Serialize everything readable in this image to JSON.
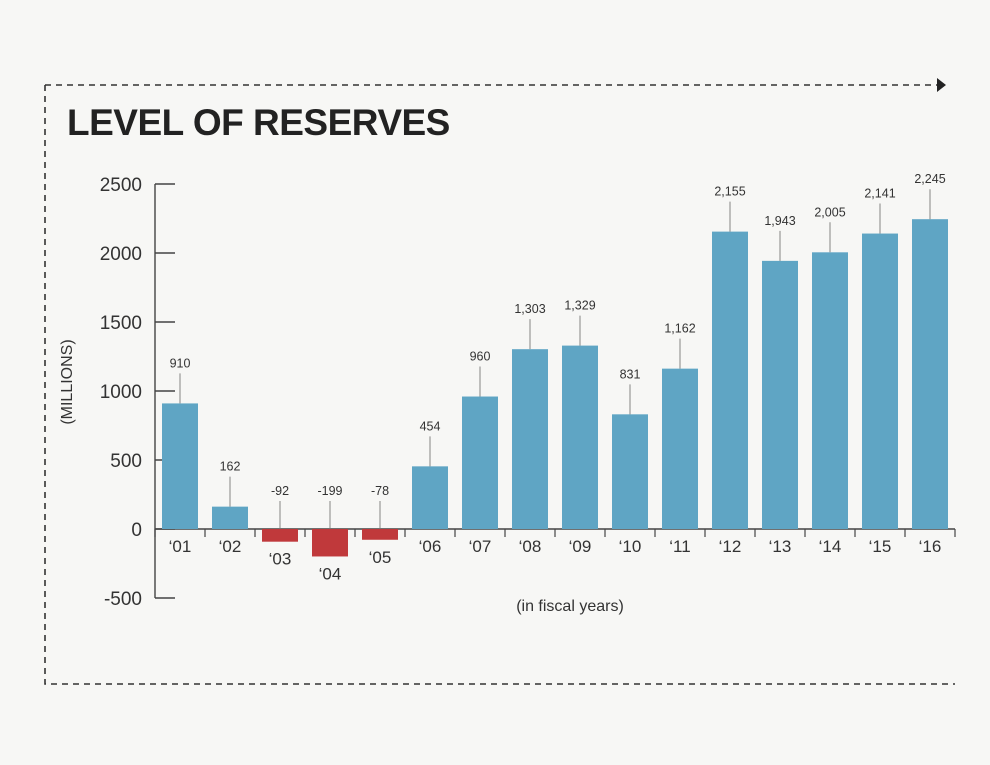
{
  "chart_data": {
    "type": "bar",
    "title": "LEVEL OF RESERVES",
    "ylabel": "(MILLIONS)",
    "xlabel": "(in fiscal years)",
    "categories": [
      "‘01",
      "‘02",
      "‘03",
      "‘04",
      "‘05",
      "‘06",
      "‘07",
      "‘08",
      "‘09",
      "‘10",
      "‘11",
      "‘12",
      "‘13",
      "‘14",
      "‘15",
      "‘16"
    ],
    "values": [
      910,
      162,
      -92,
      -199,
      -78,
      454,
      960,
      1303,
      1329,
      831,
      1162,
      2155,
      1943,
      2005,
      2141,
      2245
    ],
    "value_labels": [
      "910",
      "162",
      "-92",
      "-199",
      "-78",
      "454",
      "960",
      "1,303",
      "1,329",
      "831",
      "1,162",
      "2,155",
      "1,943",
      "2,005",
      "2,141",
      "2,245"
    ],
    "ylim": [
      -500,
      2500
    ],
    "yticks": [
      2500,
      2000,
      1500,
      1000,
      500,
      0,
      -500
    ],
    "ytick_labels": [
      "2500",
      "2000",
      "1500",
      "1000",
      "500",
      "0",
      "-500"
    ],
    "grid": false,
    "colors": {
      "positive": "#5fa5c4",
      "negative": "#c0393b",
      "text": "#333333",
      "frame": "#444444"
    }
  }
}
